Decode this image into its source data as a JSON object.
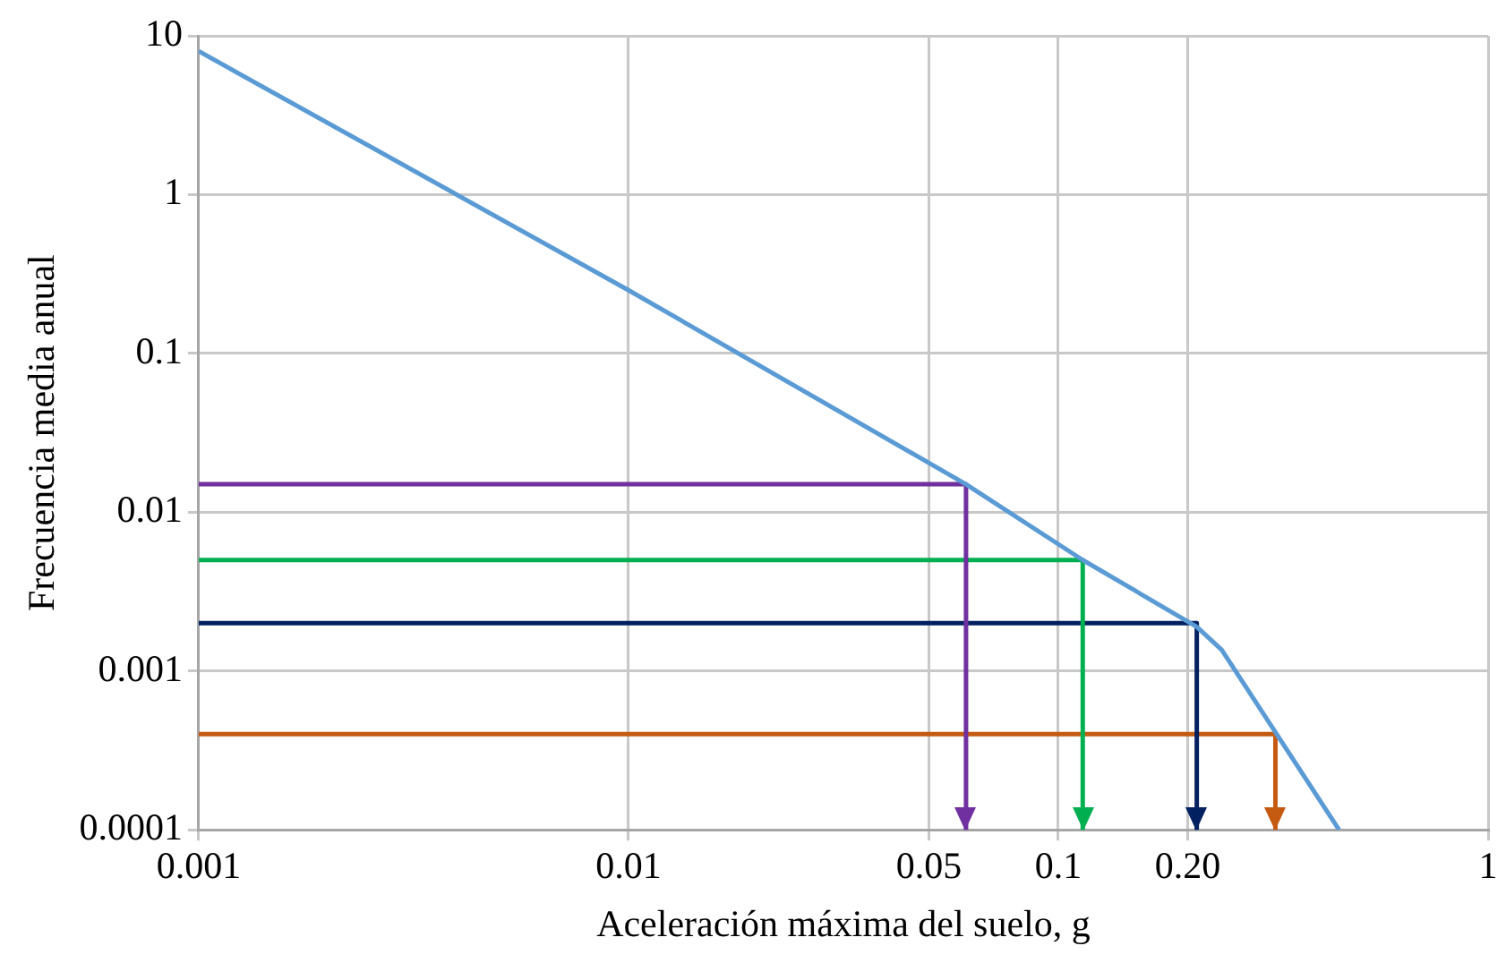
{
  "chart_data": {
    "type": "line",
    "xlabel": "Aceleración máxima del suelo, g",
    "ylabel": "Frecuencia media anual",
    "log": "xy",
    "grid": true,
    "legend": false,
    "marker": "none",
    "line_style": "solid",
    "xlim": [
      0.001,
      1
    ],
    "xticks": [
      0.001,
      0.01,
      0.05,
      0.1,
      {
        "value": 0.2,
        "label": "0.20"
      },
      1
    ],
    "ylim": [
      0.0001,
      10
    ],
    "yticks": [
      0.0001,
      0.001,
      0.01,
      0.1,
      1,
      10
    ],
    "series": [
      {
        "color": "#5b9bd5",
        "x": [
          0.001,
          0.01,
          0.061,
          0.114,
          0.21,
          0.24,
          0.45
        ],
        "values": [
          8,
          0.25,
          0.015,
          0.005,
          0.0019,
          0.00136,
          0.0001
        ]
      },
      {
        "color": "#7030a0",
        "x": [
          0.001,
          0.061,
          0.061
        ],
        "values": [
          0.015,
          0.015,
          0.0001
        ]
      },
      {
        "color": "#00b050",
        "x": [
          0.001,
          0.114,
          0.114
        ],
        "values": [
          0.005,
          0.005,
          0.0001
        ]
      },
      {
        "color": "#002060",
        "x": [
          0.001,
          0.21,
          0.21
        ],
        "values": [
          0.002,
          0.002,
          0.0001
        ]
      },
      {
        "color": "#c55a11",
        "x": [
          0.001,
          0.32,
          0.32
        ],
        "values": [
          0.0004,
          0.0004,
          0.0001
        ]
      }
    ]
  }
}
